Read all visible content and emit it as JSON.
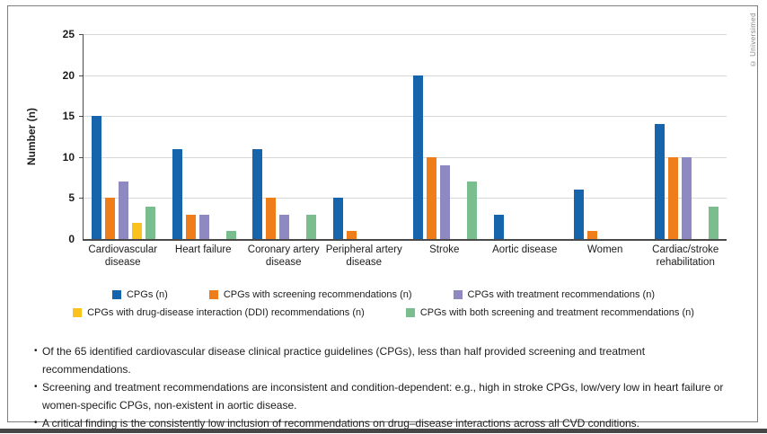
{
  "frame": {
    "copyright": "© Universimed"
  },
  "chart_data": {
    "type": "bar",
    "title": "",
    "xlabel": "",
    "ylabel": "Number (n)",
    "ylim": [
      0,
      25
    ],
    "yticks": [
      0,
      5,
      10,
      15,
      20,
      25
    ],
    "grid": true,
    "legend_position": "bottom",
    "categories": [
      "Cardiovascular disease",
      "Heart failure",
      "Coronary artery disease",
      "Peripheral artery disease",
      "Stroke",
      "Aortic disease",
      "Women",
      "Cardiac/stroke rehabilitation"
    ],
    "series": [
      {
        "name": "CPGs (n)",
        "color": "#1564ac",
        "values": [
          15,
          11,
          11,
          5,
          20,
          3,
          6,
          14
        ]
      },
      {
        "name": "CPGs with screening recommendations (n)",
        "color": "#ee7d1a",
        "values": [
          5,
          3,
          5,
          1,
          10,
          0,
          1,
          10
        ]
      },
      {
        "name": "CPGs with treatment recommendations (n)",
        "color": "#8e89c0",
        "values": [
          7,
          3,
          3,
          0,
          9,
          0,
          0,
          10
        ]
      },
      {
        "name": "CPGs with drug-disease interaction (DDI) recommendations (n)",
        "color": "#fbc21d",
        "values": [
          2,
          0,
          0,
          0,
          0,
          0,
          0,
          0
        ]
      },
      {
        "name": "CPGs with both screening and treatment recommendations (n)",
        "color": "#7abd8e",
        "values": [
          4,
          1,
          3,
          0,
          7,
          0,
          0,
          4
        ]
      }
    ]
  },
  "notes": {
    "bullet_char": "•",
    "items": [
      "Of the 65 identified cardiovascular disease clinical practice guidelines (CPGs), less than half provided screening and treatment recommendations.",
      "Screening and treatment recommendations are inconsistent and condition-dependent: e.g., high in stroke CPGs, low/very low in heart failure or women-specific CPGs, non-existent in aortic disease.",
      "A critical finding is the consistently low inclusion of recommendations on drug–disease interactions across all CVD conditions."
    ]
  }
}
